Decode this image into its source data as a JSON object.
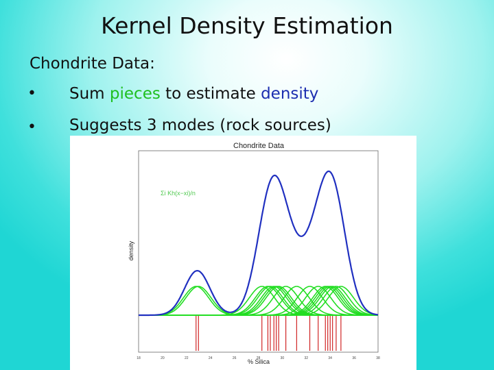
{
  "slide": {
    "title": "Kernel Density Estimation",
    "heading": "Chondrite Data:",
    "bullets": [
      {
        "marker": "•",
        "parts": [
          "Sum ",
          "pieces",
          " to estimate ",
          "density"
        ]
      },
      {
        "marker": "•",
        "text": "Suggests 3 modes (rock sources)"
      }
    ]
  },
  "figure": {
    "title": "Chondrite Data",
    "ylabel": "density",
    "xlabel": "% Silica",
    "legend_formula": "Σi Kh(x−xi)/n",
    "colors": {
      "density": "#2030c0",
      "kernels": "#22dd22",
      "rug": "#cc1111"
    },
    "x_ticks": [
      "18",
      "20",
      "22",
      "24",
      "26",
      "28",
      "30",
      "32",
      "34",
      "36",
      "38"
    ],
    "kernel_centers": [
      22.8,
      23.0,
      28.3,
      28.8,
      29.0,
      29.3,
      29.5,
      29.7,
      30.3,
      31.2,
      32.3,
      33.0,
      33.6,
      33.8,
      34.0,
      34.2,
      34.5,
      34.9
    ],
    "bandwidth": 1.05
  }
}
